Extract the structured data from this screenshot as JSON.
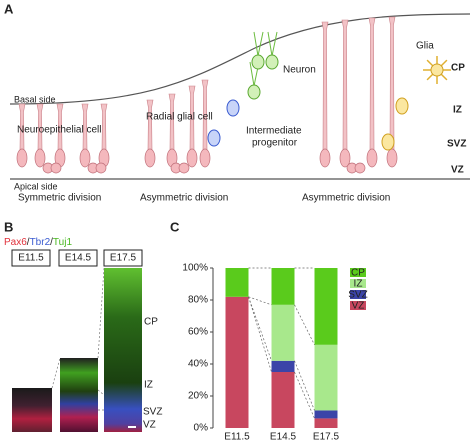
{
  "panel_a": {
    "label": "A",
    "basal_side": "Basal side",
    "apical_side": "Apical side",
    "neuroepithelial_cell": "Neuroepithelial cell",
    "radial_glial_cell": "Radial glial cell",
    "neuron": "Neuron",
    "intermediate_progenitor": [
      "Intermediate",
      "progenitor"
    ],
    "glia": "Glia",
    "zones": [
      "CP",
      "IZ",
      "SVZ",
      "VZ"
    ],
    "divisions": [
      "Symmetric division",
      "Asymmetric division",
      "Asymmetric division"
    ]
  },
  "panel_b": {
    "label": "B",
    "stains": [
      {
        "name": "Pax6",
        "color": "#e0303a"
      },
      {
        "name": "Tbr2",
        "color": "#3a5bd0"
      },
      {
        "name": "Tuj1",
        "color": "#48b820"
      }
    ],
    "separator": "/",
    "stages": [
      "E11.5",
      "E14.5",
      "E17.5"
    ],
    "zones": [
      "CP",
      "IZ",
      "SVZ",
      "VZ"
    ]
  },
  "chart_data": {
    "type": "stacked_bar",
    "panel_label": "C",
    "categories": [
      "E11.5",
      "E14.5",
      "E17.5"
    ],
    "series": [
      {
        "name": "VZ",
        "color": "#c8475f",
        "values": [
          82,
          35,
          6
        ]
      },
      {
        "name": "SVZ",
        "color": "#3b44a8",
        "values": [
          0,
          7,
          5
        ]
      },
      {
        "name": "IZ",
        "color": "#a8e88c",
        "values": [
          0,
          35,
          41
        ]
      },
      {
        "name": "CP",
        "color": "#5acb1c",
        "values": [
          18,
          23,
          48
        ]
      }
    ],
    "ylim": [
      0,
      100
    ],
    "yticks": [
      {
        "value": 0,
        "label": "0%"
      },
      {
        "value": 20,
        "label": "20%"
      },
      {
        "value": 40,
        "label": "40%"
      },
      {
        "value": 60,
        "label": "60%"
      },
      {
        "value": 80,
        "label": "80%"
      },
      {
        "value": 100,
        "label": "100%"
      }
    ],
    "legend": "upper right"
  }
}
